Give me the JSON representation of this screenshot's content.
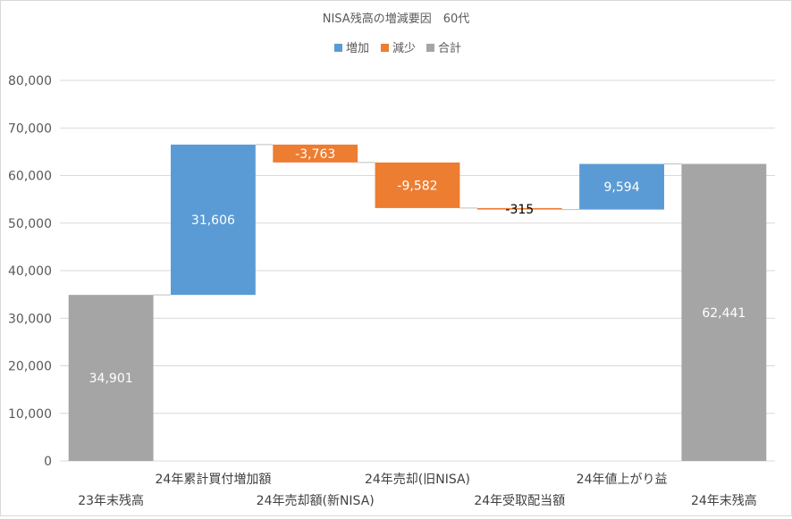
{
  "chart_data": {
    "type": "waterfall",
    "title": "NISA残高の増減要因　60代",
    "legend_placement": "top",
    "legend": [
      {
        "key": "increase",
        "label": "増加",
        "color": "#5b9bd5"
      },
      {
        "key": "decrease",
        "label": "減少",
        "color": "#ed7d31"
      },
      {
        "key": "total",
        "label": "合計",
        "color": "#a5a5a5"
      }
    ],
    "ylim": [
      0,
      80000
    ],
    "yticks": [
      {
        "value": 0,
        "label": "0"
      },
      {
        "value": 10000,
        "label": "10,000"
      },
      {
        "value": 20000,
        "label": "20,000"
      },
      {
        "value": 30000,
        "label": "30,000"
      },
      {
        "value": 40000,
        "label": "40,000"
      },
      {
        "value": 50000,
        "label": "50,000"
      },
      {
        "value": 60000,
        "label": "60,000"
      },
      {
        "value": 70000,
        "label": "70,000"
      },
      {
        "value": 80000,
        "label": "80,000"
      }
    ],
    "grid": true,
    "bars": [
      {
        "category": "23年末残高",
        "value": 34901,
        "kind": "total",
        "label": "34,901"
      },
      {
        "category": "24年累計買付増加額",
        "value": 31606,
        "kind": "increase",
        "label": "31,606"
      },
      {
        "category": "24年売却額(新NISA)",
        "value": -3763,
        "kind": "decrease",
        "label": "-3,763"
      },
      {
        "category": "24年売却(旧NISA)",
        "value": -9582,
        "kind": "decrease",
        "label": "-9,582"
      },
      {
        "category": "24年受取配当額",
        "value": -315,
        "kind": "decrease",
        "label": "-315"
      },
      {
        "category": "24年値上がり益",
        "value": 9594,
        "kind": "increase",
        "label": "9,594"
      },
      {
        "category": "24年末残高",
        "value": 62441,
        "kind": "total",
        "label": "62,441"
      }
    ]
  }
}
